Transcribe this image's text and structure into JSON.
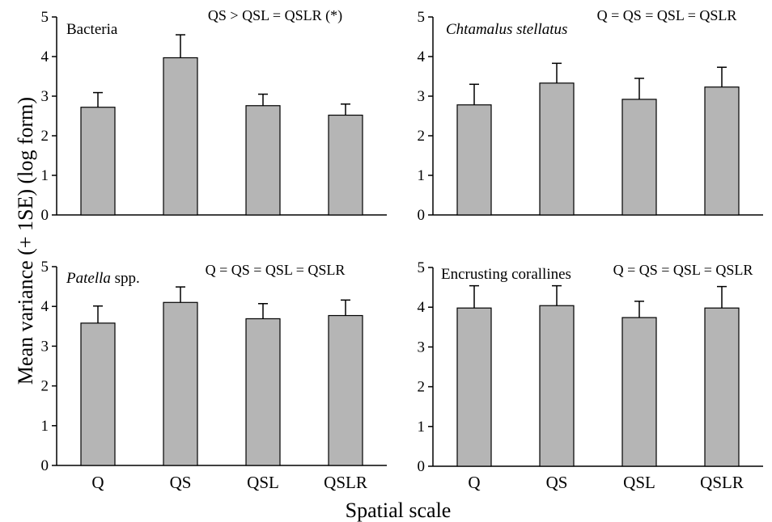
{
  "figure": {
    "ylabel": "Mean variance (+ 1SE) (log form)",
    "xlabel": "Spatial scale"
  },
  "colors": {
    "bar_fill": "#b5b5b5",
    "bar_stroke": "#000000",
    "axis": "#000000"
  },
  "chart_data": [
    {
      "type": "bar",
      "title": "Bacteria",
      "title_italic": false,
      "annotation": "QS > QSL = QSLR (*)",
      "categories": [
        "Q",
        "QS",
        "QSL",
        "QSLR"
      ],
      "values": [
        2.72,
        3.97,
        2.76,
        2.52
      ],
      "errors": [
        0.37,
        0.58,
        0.29,
        0.28
      ],
      "ylim": [
        0,
        5
      ],
      "yticks": [
        0,
        1,
        2,
        3,
        4,
        5
      ],
      "show_xlabels": false
    },
    {
      "type": "bar",
      "title": "Chtamalus stellatus",
      "title_italic": true,
      "annotation": "Q = QS = QSL = QSLR",
      "categories": [
        "Q",
        "QS",
        "QSL",
        "QSLR"
      ],
      "values": [
        2.78,
        3.33,
        2.92,
        3.23
      ],
      "errors": [
        0.52,
        0.5,
        0.53,
        0.5
      ],
      "ylim": [
        0,
        5
      ],
      "yticks": [
        0,
        1,
        2,
        3,
        4,
        5
      ],
      "show_xlabels": false
    },
    {
      "type": "bar",
      "title_parts": [
        {
          "text": "Patella",
          "italic": true
        },
        {
          "text": " spp.",
          "italic": false
        }
      ],
      "annotation": "Q = QS = QSL = QSLR",
      "categories": [
        "Q",
        "QS",
        "QSL",
        "QSLR"
      ],
      "values": [
        3.58,
        4.1,
        3.69,
        3.77
      ],
      "errors": [
        0.43,
        0.39,
        0.38,
        0.39
      ],
      "ylim": [
        0,
        5
      ],
      "yticks": [
        0,
        1,
        2,
        3,
        4,
        5
      ],
      "show_xlabels": true
    },
    {
      "type": "bar",
      "title": "Encrusting corallines",
      "title_italic": false,
      "annotation": "Q = QS = QSL = QSLR",
      "categories": [
        "Q",
        "QS",
        "QSL",
        "QSLR"
      ],
      "values": [
        3.98,
        4.04,
        3.74,
        3.98
      ],
      "errors": [
        0.56,
        0.5,
        0.41,
        0.54
      ],
      "ylim": [
        0,
        5
      ],
      "yticks": [
        0,
        1,
        2,
        3,
        4,
        5
      ],
      "show_xlabels": true
    }
  ]
}
